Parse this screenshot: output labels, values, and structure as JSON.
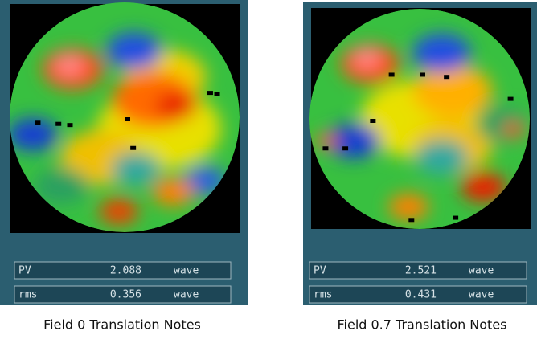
{
  "panels": [
    {
      "caption": "Field 0 Translation Notes",
      "readouts": [
        {
          "label": "PV",
          "value": 2.088,
          "unit": "wave"
        },
        {
          "label": "rms",
          "value": 0.356,
          "unit": "wave"
        }
      ]
    },
    {
      "caption": "Field 0.7 Translation Notes",
      "readouts": [
        {
          "label": "PV",
          "value": 2.521,
          "unit": "wave"
        },
        {
          "label": "rms",
          "value": 0.431,
          "unit": "wave"
        }
      ]
    }
  ]
}
